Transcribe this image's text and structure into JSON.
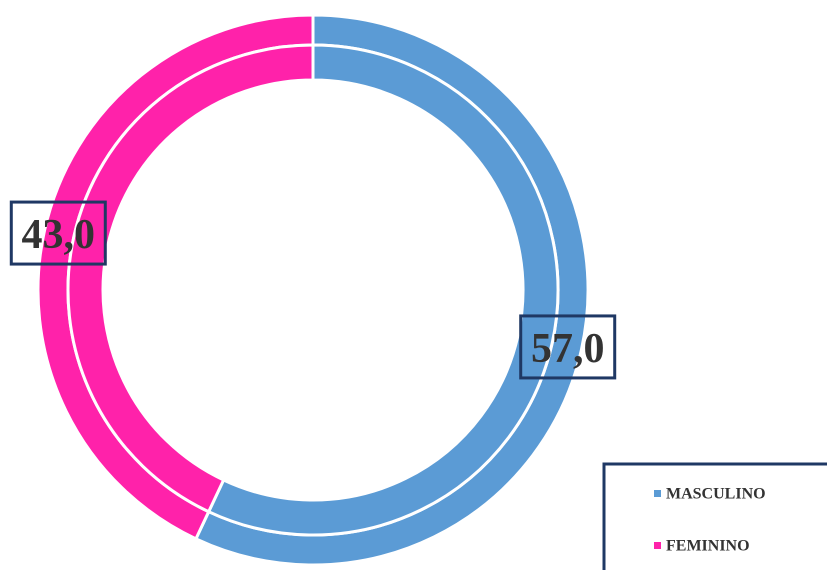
{
  "chart_data": {
    "type": "doughnut",
    "categories": [
      "MASCULINO",
      "FEMININO"
    ],
    "values": [
      57,
      43
    ],
    "value_labels": [
      "57,0",
      "43,0"
    ],
    "colors": [
      "#5b9bd5",
      "#ff22aa"
    ],
    "legend": "bottom-right"
  }
}
